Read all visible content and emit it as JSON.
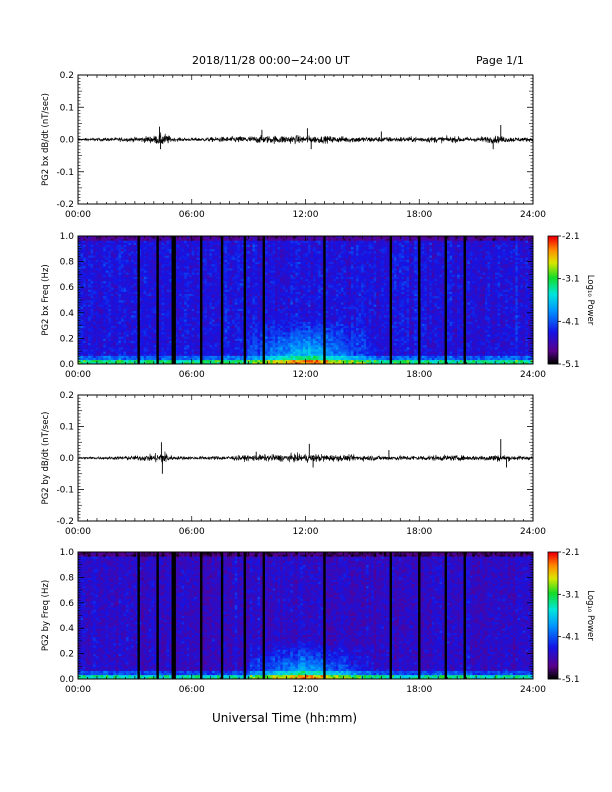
{
  "header": {
    "title": "2018/11/28  00:00−24:00 UT",
    "page": "Page 1/1"
  },
  "footer": {
    "xlabel": "Universal Time (hh:mm)"
  },
  "chart_data": [
    {
      "type": "line",
      "panel": "bx-waveform",
      "ylabel": "PG2  bx  dB/dt  (nT/sec)",
      "xlabel": "",
      "xticks": [
        "00:00",
        "06:00",
        "12:00",
        "18:00",
        "24:00"
      ],
      "xlim": [
        0,
        24
      ],
      "ylim": [
        -0.2,
        0.2
      ],
      "yticks": [
        "-0.2",
        "-0.1",
        "0.0",
        "0.1",
        "0.2"
      ],
      "series": [
        {
          "color": "#000000",
          "baseline": 0.0,
          "envelope_hours": [
            0,
            1,
            2,
            3,
            4,
            4.5,
            5,
            6,
            7,
            8,
            9,
            10,
            11,
            12,
            13,
            14,
            15,
            16,
            17,
            18,
            19,
            20,
            21,
            22,
            23,
            24
          ],
          "envelope_amp": [
            0.006,
            0.008,
            0.01,
            0.012,
            0.02,
            0.035,
            0.01,
            0.008,
            0.012,
            0.015,
            0.018,
            0.02,
            0.022,
            0.02,
            0.018,
            0.016,
            0.015,
            0.014,
            0.013,
            0.014,
            0.016,
            0.015,
            0.012,
            0.02,
            0.012,
            0.01
          ]
        }
      ],
      "spikes": [
        {
          "x": 4.3,
          "y": 0.04
        },
        {
          "x": 4.35,
          "y": -0.03
        },
        {
          "x": 9.7,
          "y": 0.03
        },
        {
          "x": 12.1,
          "y": 0.035
        },
        {
          "x": 12.3,
          "y": -0.03
        },
        {
          "x": 22.3,
          "y": 0.045
        },
        {
          "x": 21.9,
          "y": -0.03
        },
        {
          "x": 16.0,
          "y": 0.025
        }
      ]
    },
    {
      "type": "heatmap",
      "panel": "bx-spectrogram",
      "ylabel": "PG2  bx  Freq  (Hz)",
      "xticks": [
        "00:00",
        "06:00",
        "12:00",
        "18:00",
        "24:00"
      ],
      "xlim": [
        0,
        24
      ],
      "ylim": [
        0.0,
        1.0
      ],
      "yticks": [
        "0.0",
        "0.2",
        "0.4",
        "0.6",
        "0.8",
        "1.0"
      ],
      "colorbar": {
        "label": "Log₁₀ Power",
        "ticks": [
          "-2.1",
          "-3.1",
          "-4.1",
          "-5.1"
        ],
        "range": [
          -5.1,
          -2.1
        ]
      },
      "gaps_hours": [
        3.2,
        4.2,
        5.0,
        5.1,
        6.5,
        7.6,
        8.8,
        9.8,
        13.0,
        16.5,
        18.0,
        19.4,
        20.4
      ],
      "enhanced_band": {
        "x_hours": [
          9,
          17
        ],
        "y_hz": [
          0.0,
          0.35
        ],
        "peak_x": 12,
        "peak_level": -3.5
      },
      "background_level": -4.4
    },
    {
      "type": "line",
      "panel": "by-waveform",
      "ylabel": "PG2  by  dB/dt  (nT/sec)",
      "xticks": [
        "00:00",
        "06:00",
        "12:00",
        "18:00",
        "24:00"
      ],
      "xlim": [
        0,
        24
      ],
      "ylim": [
        -0.2,
        0.2
      ],
      "yticks": [
        "-0.2",
        "-0.1",
        "0.0",
        "0.1",
        "0.2"
      ],
      "series": [
        {
          "color": "#000000",
          "baseline": 0.0,
          "envelope_hours": [
            0,
            1,
            2,
            3,
            4,
            4.5,
            5,
            6,
            7,
            8,
            9,
            10,
            11,
            12,
            13,
            14,
            15,
            16,
            17,
            18,
            19,
            20,
            21,
            22,
            23,
            24
          ],
          "envelope_amp": [
            0.006,
            0.007,
            0.009,
            0.012,
            0.02,
            0.04,
            0.01,
            0.008,
            0.01,
            0.012,
            0.015,
            0.018,
            0.02,
            0.022,
            0.02,
            0.016,
            0.015,
            0.013,
            0.012,
            0.013,
            0.015,
            0.014,
            0.012,
            0.02,
            0.012,
            0.01
          ]
        }
      ],
      "spikes": [
        {
          "x": 4.4,
          "y": 0.05
        },
        {
          "x": 4.45,
          "y": -0.05
        },
        {
          "x": 12.2,
          "y": 0.045
        },
        {
          "x": 12.4,
          "y": -0.03
        },
        {
          "x": 22.3,
          "y": 0.06
        },
        {
          "x": 22.6,
          "y": -0.03
        },
        {
          "x": 9.4,
          "y": 0.02
        },
        {
          "x": 16.4,
          "y": 0.025
        }
      ]
    },
    {
      "type": "heatmap",
      "panel": "by-spectrogram",
      "ylabel": "PG2  by  Freq  (Hz)",
      "xticks": [
        "00:00",
        "06:00",
        "12:00",
        "18:00",
        "24:00"
      ],
      "xlim": [
        0,
        24
      ],
      "ylim": [
        0.0,
        1.0
      ],
      "yticks": [
        "0.0",
        "0.2",
        "0.4",
        "0.6",
        "0.8",
        "1.0"
      ],
      "colorbar": {
        "label": "Log₁₀ Power",
        "ticks": [
          "-2.1",
          "-3.1",
          "-4.1",
          "-5.1"
        ],
        "range": [
          -5.1,
          -2.1
        ]
      },
      "gaps_hours": [
        3.2,
        4.2,
        5.0,
        5.1,
        6.5,
        7.6,
        8.8,
        9.8,
        13.0,
        16.5,
        18.0,
        19.4,
        20.4
      ],
      "enhanced_band": {
        "x_hours": [
          9,
          17
        ],
        "y_hz": [
          0.0,
          0.3
        ],
        "peak_x": 12,
        "peak_level": -3.6
      },
      "background_level": -4.5
    }
  ]
}
